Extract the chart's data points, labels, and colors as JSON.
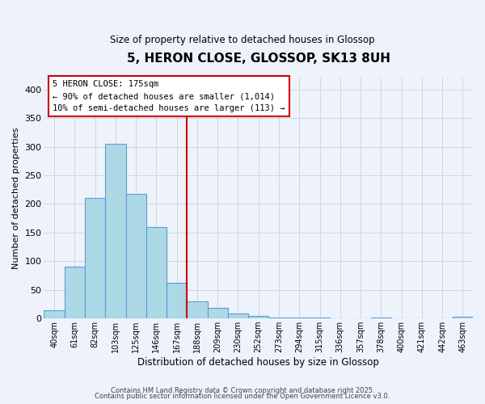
{
  "title": "5, HERON CLOSE, GLOSSOP, SK13 8UH",
  "subtitle": "Size of property relative to detached houses in Glossop",
  "xlabel": "Distribution of detached houses by size in Glossop",
  "ylabel": "Number of detached properties",
  "bar_labels": [
    "40sqm",
    "61sqm",
    "82sqm",
    "103sqm",
    "125sqm",
    "146sqm",
    "167sqm",
    "188sqm",
    "209sqm",
    "230sqm",
    "252sqm",
    "273sqm",
    "294sqm",
    "315sqm",
    "336sqm",
    "357sqm",
    "378sqm",
    "400sqm",
    "421sqm",
    "442sqm",
    "463sqm"
  ],
  "bar_values": [
    15,
    91,
    211,
    305,
    218,
    160,
    63,
    30,
    19,
    8,
    4,
    2,
    1,
    1,
    0,
    0,
    2,
    0,
    0,
    0,
    3
  ],
  "bar_color": "#add8e6",
  "bar_edge_color": "#5b9bd5",
  "vline_color": "#cc0000",
  "annotation_title": "5 HERON CLOSE: 175sqm",
  "annotation_line1": "← 90% of detached houses are smaller (1,014)",
  "annotation_line2": "10% of semi-detached houses are larger (113) →",
  "annotation_box_color": "#ffffff",
  "annotation_box_edge": "#cc0000",
  "background_color": "#eef2fb",
  "grid_color": "#c8d0e0",
  "ylim": [
    0,
    420
  ],
  "yticks": [
    0,
    50,
    100,
    150,
    200,
    250,
    300,
    350,
    400
  ],
  "footer1": "Contains HM Land Registry data © Crown copyright and database right 2025.",
  "footer2": "Contains public sector information licensed under the Open Government Licence v3.0."
}
